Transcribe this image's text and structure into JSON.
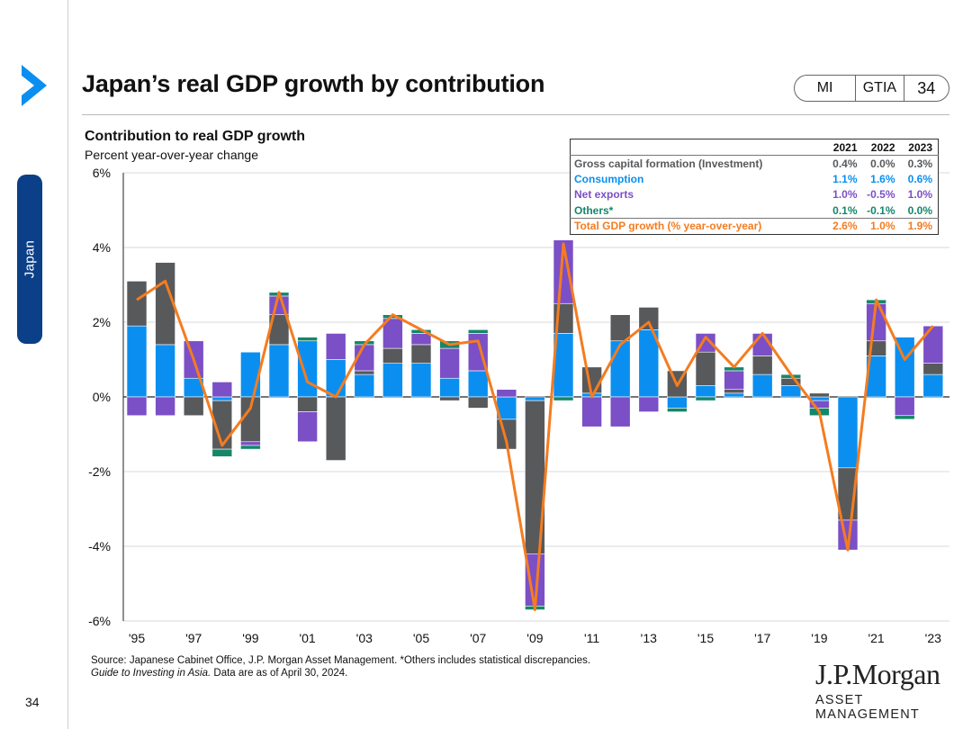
{
  "side_tab": {
    "label": "Japan"
  },
  "page_number": "34",
  "title": "Japan’s real GDP growth by contribution",
  "pill": {
    "mi": "MI",
    "gtia": "GTIA",
    "num": "34"
  },
  "chart_heading": "Contribution to real GDP growth",
  "chart_subheading": "Percent year-over-year change",
  "colors": {
    "investment": "#58595b",
    "consumption": "#0a8ff0",
    "net_exports": "#7b4fc6",
    "others": "#14876a",
    "total": "#f47c20"
  },
  "table": {
    "headers": [
      "2021",
      "2022",
      "2023"
    ],
    "rows": [
      {
        "label": "Gross capital formation (Investment)",
        "values": [
          "0.4%",
          "0.0%",
          "0.3%"
        ],
        "color": "#58595b"
      },
      {
        "label": "Consumption",
        "values": [
          "1.1%",
          "1.6%",
          "0.6%"
        ],
        "color": "#0a8ff0"
      },
      {
        "label": "Net exports",
        "values": [
          "1.0%",
          "-0.5%",
          "1.0%"
        ],
        "color": "#7b4fc6"
      },
      {
        "label": "Others*",
        "values": [
          "0.1%",
          "-0.1%",
          "0.0%"
        ],
        "color": "#14876a"
      },
      {
        "label": "Total GDP growth (% year-over-year)",
        "values": [
          "2.6%",
          "1.0%",
          "1.9%"
        ],
        "color": "#f47c20"
      }
    ]
  },
  "source_line1": "Source: Japanese Cabinet Office, J.P. Morgan Asset Management. *Others includes statistical discrepancies.",
  "source_guide": "Guide to Investing in Asia.",
  "source_date": " Data are as of April 30, 2024.",
  "logo": {
    "name": "J.P.Morgan",
    "sub": "ASSET MANAGEMENT"
  },
  "chart_data": {
    "type": "bar",
    "stacked": true,
    "title": "Contribution to real GDP growth",
    "ylabel": "Percent year-over-year change",
    "ylim": [
      -6,
      6
    ],
    "y_ticks": [
      6,
      4,
      2,
      0,
      -2,
      -4,
      -6
    ],
    "y_tick_labels": [
      "6%",
      "4%",
      "2%",
      "0%",
      "-2%",
      "-4%",
      "-6%"
    ],
    "x_tick_labels": [
      "'95",
      "'97",
      "'99",
      "'01",
      "'03",
      "'05",
      "'07",
      "'09",
      "'11",
      "'13",
      "'15",
      "'17",
      "'19",
      "'21",
      "'23"
    ],
    "categories": [
      "1995",
      "1996",
      "1997",
      "1998",
      "1999",
      "2000",
      "2001",
      "2002",
      "2003",
      "2004",
      "2005",
      "2006",
      "2007",
      "2008",
      "2009",
      "2010",
      "2011",
      "2012",
      "2013",
      "2014",
      "2015",
      "2016",
      "2017",
      "2018",
      "2019",
      "2020",
      "2021",
      "2022",
      "2023"
    ],
    "series": [
      {
        "name": "Consumption",
        "key": "consumption",
        "values": [
          1.9,
          1.4,
          0.5,
          -0.1,
          1.2,
          1.4,
          1.5,
          1.0,
          0.6,
          0.9,
          0.9,
          0.5,
          0.7,
          -0.6,
          -0.1,
          1.7,
          0.1,
          1.5,
          1.8,
          -0.3,
          0.3,
          0.1,
          0.6,
          0.3,
          -0.1,
          -1.9,
          1.1,
          1.6,
          0.6
        ]
      },
      {
        "name": "Gross capital formation (Investment)",
        "key": "investment",
        "values": [
          1.2,
          2.2,
          -0.5,
          -1.3,
          -1.2,
          0.8,
          -0.4,
          -1.7,
          0.1,
          0.4,
          0.5,
          -0.1,
          -0.3,
          -0.8,
          -4.1,
          0.8,
          0.7,
          0.7,
          0.6,
          0.7,
          0.9,
          0.1,
          0.5,
          0.2,
          0.1,
          -1.4,
          0.4,
          0.0,
          0.3
        ]
      },
      {
        "name": "Net exports",
        "key": "net_exports",
        "values": [
          -0.5,
          -0.5,
          1.0,
          0.4,
          -0.1,
          0.5,
          -0.8,
          0.7,
          0.7,
          0.8,
          0.3,
          0.8,
          1.0,
          0.2,
          -1.4,
          1.7,
          -0.8,
          -0.8,
          -0.4,
          0.0,
          0.5,
          0.5,
          0.6,
          0.0,
          -0.2,
          -0.8,
          1.0,
          -0.5,
          1.0
        ]
      },
      {
        "name": "Others*",
        "key": "others",
        "values": [
          0.0,
          0.0,
          0.0,
          -0.2,
          -0.1,
          0.1,
          0.1,
          0.0,
          0.1,
          0.1,
          0.1,
          0.2,
          0.1,
          0.0,
          -0.1,
          -0.1,
          0.0,
          0.0,
          0.0,
          -0.1,
          -0.1,
          0.1,
          0.0,
          0.1,
          -0.2,
          0.0,
          0.1,
          -0.1,
          0.0
        ]
      },
      {
        "name": "Total GDP growth (% year-over-year)",
        "key": "total",
        "type": "line",
        "values": [
          2.6,
          3.1,
          1.0,
          -1.3,
          -0.3,
          2.8,
          0.4,
          0.0,
          1.4,
          2.2,
          1.8,
          1.4,
          1.5,
          -1.2,
          -5.7,
          4.1,
          0.0,
          1.4,
          2.0,
          0.3,
          1.6,
          0.8,
          1.7,
          0.6,
          -0.4,
          -4.1,
          2.6,
          1.0,
          1.9
        ]
      }
    ]
  }
}
